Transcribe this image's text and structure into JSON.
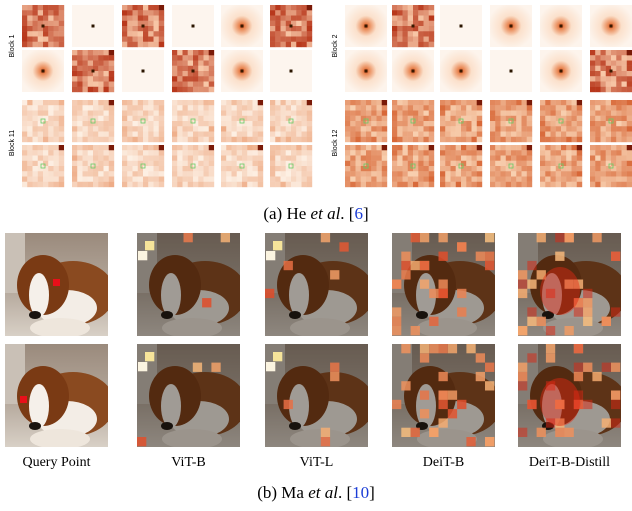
{
  "panel_a": {
    "blocks": [
      "Block 1",
      "Block 2",
      "Block 11",
      "Block 12"
    ],
    "caption": [
      "(a) He ",
      "et al",
      ". [",
      "6",
      "]"
    ]
  },
  "panel_b": {
    "columns": [
      "Query Point",
      "ViT-B",
      "ViT-L",
      "DeiT-B",
      "DeiT-B-Distill"
    ],
    "caption": [
      "(b) Ma ",
      "et al",
      ". [",
      "10",
      "]"
    ]
  }
}
